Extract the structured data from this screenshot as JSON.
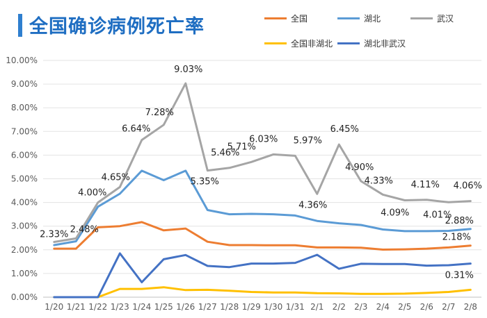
{
  "header": {
    "title": "全国确诊病例死亡率"
  },
  "chart_data": {
    "type": "line",
    "title": "全国确诊病例死亡率",
    "xlabel": "",
    "ylabel": "",
    "ylim": [
      0,
      10
    ],
    "y_ticks": [
      "0.00%",
      "1.00%",
      "2.00%",
      "3.00%",
      "4.00%",
      "5.00%",
      "6.00%",
      "7.00%",
      "8.00%",
      "9.00%",
      "10.00%"
    ],
    "grid": true,
    "legend_position": "top-right",
    "categories": [
      "1/20",
      "1/21",
      "1/22",
      "1/23",
      "1/24",
      "1/25",
      "1/26",
      "1/27",
      "1/28",
      "1/29",
      "1/30",
      "1/31",
      "2/1",
      "2/2",
      "2/3",
      "2/4",
      "2/5",
      "2/6",
      "2/7",
      "2/8"
    ],
    "series": [
      {
        "name": "全国",
        "color": "#ed7d31",
        "values": [
          2.05,
          2.05,
          2.95,
          3.0,
          3.17,
          2.82,
          2.9,
          2.34,
          2.2,
          2.2,
          2.19,
          2.19,
          2.1,
          2.1,
          2.09,
          2.01,
          2.02,
          2.05,
          2.1,
          2.18
        ]
      },
      {
        "name": "湖北",
        "color": "#5b9bd5",
        "values": [
          2.2,
          2.36,
          3.82,
          4.37,
          5.34,
          4.94,
          5.34,
          3.68,
          3.5,
          3.52,
          3.5,
          3.45,
          3.22,
          3.12,
          3.05,
          2.86,
          2.79,
          2.79,
          2.8,
          2.88
        ]
      },
      {
        "name": "武汉",
        "color": "#a5a5a5",
        "values": [
          2.33,
          2.48,
          4.0,
          4.65,
          6.64,
          7.28,
          9.03,
          5.35,
          5.46,
          5.71,
          6.03,
          5.97,
          4.36,
          6.45,
          4.9,
          4.33,
          4.09,
          4.11,
          4.01,
          4.06
        ]
      },
      {
        "name": "全国非湖北",
        "color": "#ffc000",
        "values": [
          0,
          0,
          0,
          0.35,
          0.35,
          0.42,
          0.3,
          0.31,
          0.27,
          0.22,
          0.2,
          0.2,
          0.17,
          0.16,
          0.14,
          0.14,
          0.15,
          0.18,
          0.22,
          0.31
        ]
      },
      {
        "name": "湖北非武汉",
        "color": "#4472c4",
        "values": [
          0,
          0,
          0,
          1.85,
          0.63,
          1.6,
          1.78,
          1.32,
          1.27,
          1.42,
          1.42,
          1.45,
          1.79,
          1.2,
          1.41,
          1.4,
          1.4,
          1.33,
          1.35,
          1.42
        ]
      }
    ],
    "data_labels": [
      {
        "series": "武汉",
        "index": 0,
        "text": "2.33%"
      },
      {
        "series": "武汉",
        "index": 1,
        "text": "2.48%"
      },
      {
        "series": "武汉",
        "index": 2,
        "text": "4.00%"
      },
      {
        "series": "武汉",
        "index": 3,
        "text": "4.65%"
      },
      {
        "series": "武汉",
        "index": 4,
        "text": "6.64%"
      },
      {
        "series": "武汉",
        "index": 5,
        "text": "7.28%"
      },
      {
        "series": "武汉",
        "index": 6,
        "text": "9.03%"
      },
      {
        "series": "武汉",
        "index": 7,
        "text": "5.35%"
      },
      {
        "series": "武汉",
        "index": 8,
        "text": "5.46%"
      },
      {
        "series": "武汉",
        "index": 9,
        "text": "5.71%"
      },
      {
        "series": "武汉",
        "index": 10,
        "text": "6.03%"
      },
      {
        "series": "武汉",
        "index": 11,
        "text": "5.97%"
      },
      {
        "series": "武汉",
        "index": 12,
        "text": "4.36%"
      },
      {
        "series": "武汉",
        "index": 13,
        "text": "6.45%"
      },
      {
        "series": "武汉",
        "index": 14,
        "text": "4.90%"
      },
      {
        "series": "武汉",
        "index": 15,
        "text": "4.33%"
      },
      {
        "series": "武汉",
        "index": 16,
        "text": "4.09%"
      },
      {
        "series": "武汉",
        "index": 17,
        "text": "4.11%"
      },
      {
        "series": "武汉",
        "index": 18,
        "text": "4.01%"
      },
      {
        "series": "武汉",
        "index": 19,
        "text": "4.06%"
      },
      {
        "series": "湖北",
        "index": 19,
        "text": "2.88%"
      },
      {
        "series": "全国",
        "index": 19,
        "text": "2.18%"
      },
      {
        "series": "全国非湖北",
        "index": 19,
        "text": "0.31%"
      }
    ]
  }
}
